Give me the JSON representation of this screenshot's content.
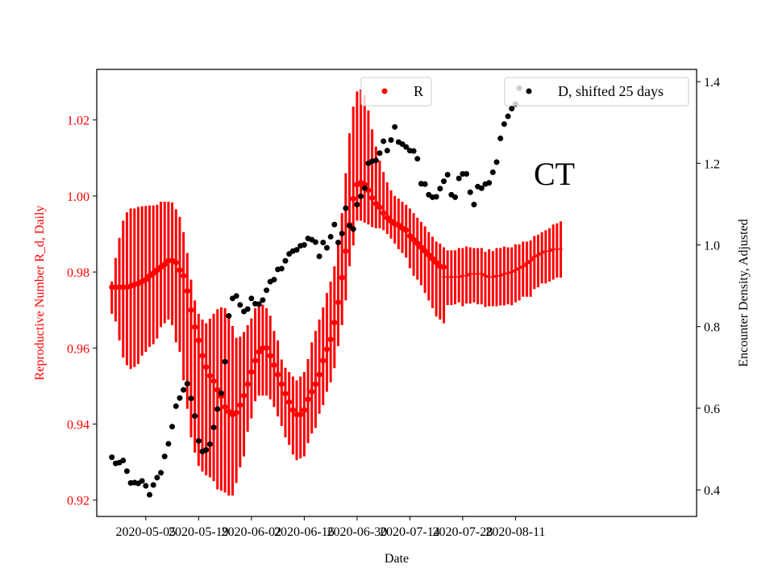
{
  "chart_data": {
    "type": "scatter",
    "title": "",
    "xlabel": "Date",
    "ylabel_left": "Reproductive Number R_d, Daily",
    "ylabel_right": "Encounter Density, Adjusted",
    "annotation": "CT",
    "colors": {
      "R": "#ff0000",
      "D": "#000000",
      "axis": "#000000"
    },
    "x_axis": {
      "start": "2020-04-26",
      "range_days": [
        -4,
        155
      ],
      "ticks": [
        {
          "day": 9,
          "label": "2020-05-05"
        },
        {
          "day": 23,
          "label": "2020-05-19"
        },
        {
          "day": 37,
          "label": "2020-06-02"
        },
        {
          "day": 51,
          "label": "2020-06-16"
        },
        {
          "day": 65,
          "label": "2020-06-30"
        },
        {
          "day": 79,
          "label": "2020-07-14"
        },
        {
          "day": 93,
          "label": "2020-07-28"
        },
        {
          "day": 107,
          "label": "2020-08-11"
        }
      ]
    },
    "y_left": {
      "range": [
        0.9157,
        1.0333
      ],
      "ticks": [
        {
          "value": 0.92,
          "label": "0.92"
        },
        {
          "value": 0.94,
          "label": "0.94"
        },
        {
          "value": 0.96,
          "label": "0.96"
        },
        {
          "value": 0.98,
          "label": "0.98"
        },
        {
          "value": 1.0,
          "label": "1.00"
        },
        {
          "value": 1.02,
          "label": "1.02"
        }
      ]
    },
    "y_right": {
      "range": [
        0.335,
        1.43
      ],
      "ticks": [
        {
          "value": 0.4,
          "label": "0.4"
        },
        {
          "value": 0.6,
          "label": "0.6"
        },
        {
          "value": 0.8,
          "label": "0.8"
        },
        {
          "value": 1.0,
          "label": "1.0"
        },
        {
          "value": 1.2,
          "label": "1.2"
        },
        {
          "value": 1.4,
          "label": "1.4"
        }
      ]
    },
    "legend_left": {
      "label": "R",
      "position": "top-center"
    },
    "legend_right": {
      "label": "D, shifted 25 days",
      "position": "top-right"
    },
    "series_R": {
      "name": "R",
      "axis": "left",
      "start_day": 0,
      "values": [
        0.976,
        0.976,
        0.976,
        0.976,
        0.976,
        0.9763,
        0.9767,
        0.977,
        0.9775,
        0.978,
        0.979,
        0.9797,
        0.9805,
        0.9813,
        0.982,
        0.983,
        0.983,
        0.9825,
        0.9805,
        0.979,
        0.975,
        0.97,
        0.9655,
        0.962,
        0.958,
        0.955,
        0.9527,
        0.9513,
        0.949,
        0.9473,
        0.9445,
        0.9433,
        0.9425,
        0.943,
        0.945,
        0.9475,
        0.9505,
        0.9537,
        0.9567,
        0.959,
        0.96,
        0.96,
        0.958,
        0.9555,
        0.953,
        0.9505,
        0.948,
        0.9458,
        0.9437,
        0.9425,
        0.9425,
        0.9437,
        0.9465,
        0.9485,
        0.9505,
        0.953,
        0.9567,
        0.9597,
        0.9623,
        0.9667,
        0.972,
        0.9785,
        0.9855,
        0.9925,
        0.9993,
        1.003,
        1.0035,
        1.003,
        1.0015,
        0.9995,
        0.998,
        0.997,
        0.9955,
        0.9943,
        0.9934,
        0.9927,
        0.9923,
        0.9915,
        0.991,
        0.9895,
        0.9885,
        0.9875,
        0.9865,
        0.9855,
        0.9845,
        0.9835,
        0.9825,
        0.9815,
        0.9813
      ],
      "err_lower": [
        0.969,
        0.967,
        0.962,
        0.9575,
        0.9555,
        0.9545,
        0.955,
        0.9558,
        0.958,
        0.959,
        0.9603,
        0.961,
        0.9625,
        0.9655,
        0.9665,
        0.9675,
        0.966,
        0.9615,
        0.959,
        0.9515,
        0.944,
        0.9365,
        0.9325,
        0.929,
        0.9275,
        0.9265,
        0.926,
        0.925,
        0.9228,
        0.9225,
        0.922,
        0.9212,
        0.9212,
        0.9245,
        0.9286,
        0.9315,
        0.938,
        0.9415,
        0.946,
        0.9475,
        0.9475,
        0.9475,
        0.9465,
        0.9445,
        0.942,
        0.9395,
        0.9365,
        0.9345,
        0.932,
        0.9305,
        0.931,
        0.9315,
        0.935,
        0.9375,
        0.939,
        0.9427,
        0.945,
        0.9485,
        0.951,
        0.9547,
        0.9605,
        0.966,
        0.9725,
        0.9815,
        0.987,
        0.9935,
        0.9935,
        0.993,
        0.9925,
        0.9918,
        0.9915,
        0.9915,
        0.991,
        0.99,
        0.9888,
        0.9875,
        0.986,
        0.985,
        0.9838,
        0.981,
        0.979,
        0.978,
        0.9765,
        0.9745,
        0.9725,
        0.9705,
        0.9683,
        0.9675,
        0.9665
      ],
      "err_upper": [
        0.9775,
        0.9837,
        0.989,
        0.9935,
        0.9957,
        0.9967,
        0.9967,
        0.9971,
        0.9973,
        0.9974,
        0.9975,
        0.9975,
        0.9977,
        0.9985,
        0.9985,
        0.9985,
        0.9983,
        0.9965,
        0.9945,
        0.9905,
        0.985,
        0.978,
        0.9725,
        0.969,
        0.9675,
        0.9665,
        0.9677,
        0.969,
        0.9702,
        0.9707,
        0.9705,
        0.9692,
        0.9658,
        0.9627,
        0.963,
        0.9642,
        0.966,
        0.9678,
        0.9705,
        0.9715,
        0.9714,
        0.9705,
        0.9685,
        0.9645,
        0.962,
        0.957,
        0.9548,
        0.9537,
        0.9525,
        0.9515,
        0.9525,
        0.9537,
        0.9571,
        0.9615,
        0.9645,
        0.9675,
        0.9707,
        0.9745,
        0.9775,
        0.9815,
        0.9875,
        0.9955,
        1.006,
        1.0165,
        1.0235,
        1.0275,
        1.028,
        1.0265,
        1.0225,
        1.0175,
        1.013,
        1.0093,
        1.0063,
        1.0036,
        1.0015,
        1.0,
        0.9993,
        0.9985,
        0.9977,
        0.9967,
        0.9955,
        0.9943,
        0.9932,
        0.992,
        0.9905,
        0.9893,
        0.988,
        0.9875,
        0.9865
      ]
    },
    "series_R_step": {
      "name": "R (step)",
      "axis": "left",
      "start_day": 88,
      "values": [
        0.9787,
        0.9787,
        0.9787,
        0.9787,
        0.9787,
        0.979,
        0.979,
        0.9795,
        0.9795,
        0.9795,
        0.9795,
        0.979,
        0.9787,
        0.9787,
        0.979,
        0.979,
        0.9795,
        0.9797,
        0.98,
        0.9805,
        0.981,
        0.9815,
        0.9823,
        0.983,
        0.984,
        0.9845,
        0.985,
        0.9855,
        0.9855,
        0.986,
        0.986,
        0.986
      ],
      "err_lower": [
        0.9717,
        0.9713,
        0.9713,
        0.9715,
        0.972,
        0.971,
        0.9717,
        0.9717,
        0.972,
        0.9715,
        0.9715,
        0.9708,
        0.971,
        0.971,
        0.971,
        0.9712,
        0.9712,
        0.9715,
        0.9713,
        0.972,
        0.9725,
        0.9735,
        0.9735,
        0.9735,
        0.9755,
        0.976,
        0.977,
        0.977,
        0.9775,
        0.978,
        0.9785,
        0.9785
      ],
      "err_upper": [
        0.9863,
        0.9857,
        0.9857,
        0.9857,
        0.9863,
        0.9863,
        0.9867,
        0.9865,
        0.9863,
        0.9863,
        0.9863,
        0.9853,
        0.986,
        0.9855,
        0.9863,
        0.9863,
        0.9867,
        0.9865,
        0.9865,
        0.9873,
        0.9873,
        0.988,
        0.988,
        0.9883,
        0.9895,
        0.9898,
        0.9905,
        0.991,
        0.9915,
        0.9925,
        0.9928,
        0.9933
      ]
    },
    "series_D": {
      "name": "D, shifted 25 days",
      "axis": "right",
      "start_day": 0,
      "values": [
        0.48,
        0.465,
        0.467,
        0.472,
        0.446,
        0.417,
        0.418,
        0.416,
        0.422,
        0.41,
        0.388,
        0.412,
        0.43,
        0.442,
        0.482,
        0.513,
        0.555,
        0.605,
        0.625,
        0.645,
        0.66,
        0.624,
        0.581,
        0.52,
        0.494,
        0.498,
        0.512,
        0.553,
        0.598,
        0.637,
        0.714,
        0.826,
        0.869,
        0.875,
        0.853,
        0.837,
        0.843,
        0.869,
        0.856,
        0.855,
        0.865,
        0.889,
        0.91,
        0.915,
        0.94,
        0.942,
        0.961,
        0.978,
        0.985,
        0.988,
        0.998,
        1.0,
        1.016,
        1.013,
        1.007,
        0.972,
        1.006,
        0.993,
        1.02,
        1.05,
        1.006,
        1.028,
        1.09,
        1.047,
        1.039,
        1.099,
        1.119,
        1.139,
        1.2,
        1.205,
        1.207,
        1.225,
        1.254,
        1.231,
        1.257,
        1.289,
        1.252,
        1.247,
        1.24,
        1.231,
        1.23,
        1.211,
        1.15,
        1.149,
        1.123,
        1.117,
        1.118,
        1.138,
        1.156,
        1.172,
        1.123,
        1.117,
        1.163,
        1.174,
        1.174,
        1.129,
        1.099,
        1.143,
        1.139,
        1.149,
        1.152,
        1.178,
        1.203,
        1.261,
        1.296,
        1.315,
        1.334,
        1.345,
        1.384
      ]
    }
  }
}
